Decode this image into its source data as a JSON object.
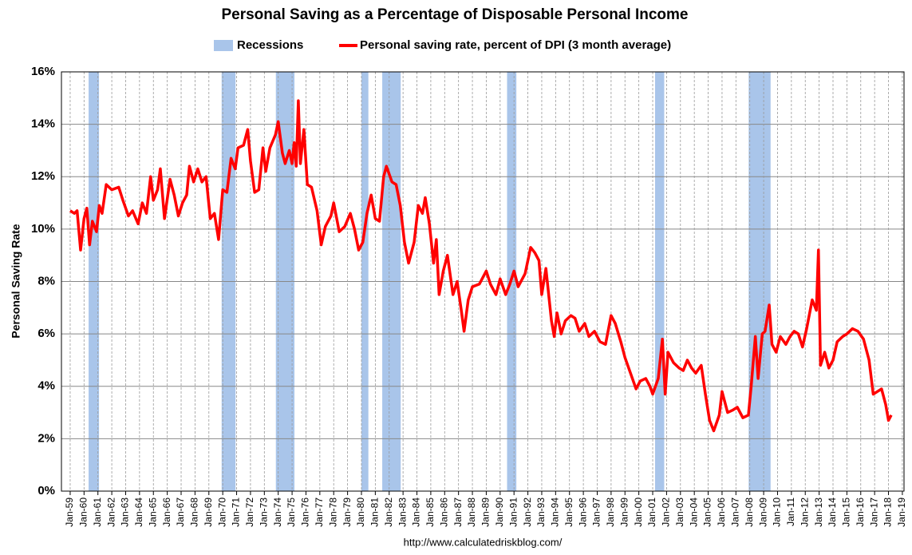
{
  "chart_data": {
    "type": "line",
    "title": "Personal Saving as a Percentage of Disposable Personal Income",
    "ylabel": "Personal Saving Rate",
    "source": "http://www.calculatedriskblog.com/",
    "recession_label": "Recessions",
    "recession_color": "#a9c5ea",
    "recessions": [
      [
        1960.33,
        1961.08
      ],
      [
        1969.92,
        1970.92
      ],
      [
        1973.83,
        1975.17
      ],
      [
        1980.0,
        1980.5
      ],
      [
        1981.5,
        1982.83
      ],
      [
        1990.5,
        1991.17
      ],
      [
        2001.17,
        2001.83
      ],
      [
        2007.92,
        2009.5
      ]
    ],
    "x": [
      1959.0,
      1959.3,
      1959.5,
      1959.75,
      1960.0,
      1960.2,
      1960.4,
      1960.6,
      1960.9,
      1961.1,
      1961.3,
      1961.6,
      1962.0,
      1962.5,
      1962.8,
      1963.2,
      1963.5,
      1963.9,
      1964.2,
      1964.5,
      1964.8,
      1965.0,
      1965.3,
      1965.5,
      1965.8,
      1966.2,
      1966.5,
      1966.8,
      1967.1,
      1967.4,
      1967.6,
      1967.9,
      1968.2,
      1968.5,
      1968.8,
      1969.1,
      1969.4,
      1969.7,
      1970.0,
      1970.3,
      1970.6,
      1970.9,
      1971.1,
      1971.5,
      1971.8,
      1972.0,
      1972.3,
      1972.6,
      1972.9,
      1973.1,
      1973.4,
      1973.8,
      1974.0,
      1974.3,
      1974.5,
      1974.8,
      1975.0,
      1975.15,
      1975.3,
      1975.45,
      1975.6,
      1975.85,
      1976.1,
      1976.4,
      1976.8,
      1977.1,
      1977.4,
      1977.8,
      1978.0,
      1978.4,
      1978.8,
      1979.2,
      1979.5,
      1979.8,
      1980.1,
      1980.4,
      1980.7,
      1981.0,
      1981.3,
      1981.6,
      1981.8,
      1982.2,
      1982.5,
      1982.8,
      1983.1,
      1983.4,
      1983.8,
      1984.1,
      1984.4,
      1984.6,
      1984.9,
      1985.2,
      1985.4,
      1985.6,
      1985.9,
      1986.2,
      1986.6,
      1986.9,
      1987.2,
      1987.4,
      1987.7,
      1988.0,
      1988.5,
      1989.0,
      1989.3,
      1989.7,
      1990.0,
      1990.4,
      1990.7,
      1991.0,
      1991.3,
      1991.8,
      1992.2,
      1992.5,
      1992.8,
      1993.0,
      1993.3,
      1993.7,
      1993.9,
      1994.1,
      1994.4,
      1994.7,
      1995.1,
      1995.4,
      1995.7,
      1996.1,
      1996.4,
      1996.8,
      1997.2,
      1997.6,
      1998.0,
      1998.3,
      1998.7,
      1999.0,
      1999.4,
      1999.8,
      2000.1,
      2000.5,
      2000.8,
      2001.0,
      2001.4,
      2001.7,
      2001.9,
      2002.1,
      2002.5,
      2002.9,
      2003.2,
      2003.5,
      2003.8,
      2004.1,
      2004.5,
      2004.8,
      2005.1,
      2005.4,
      2005.8,
      2006.0,
      2006.4,
      2006.8,
      2007.1,
      2007.5,
      2007.9,
      2008.1,
      2008.4,
      2008.6,
      2008.9,
      2009.1,
      2009.4,
      2009.6,
      2009.9,
      2010.2,
      2010.6,
      2010.9,
      2011.2,
      2011.5,
      2011.8,
      2012.1,
      2012.5,
      2012.8,
      2012.95,
      2013.1,
      2013.4,
      2013.7,
      2014.0,
      2014.3,
      2014.7,
      2015.0,
      2015.4,
      2015.8,
      2016.2,
      2016.6,
      2016.9,
      2017.2,
      2017.5,
      2017.8,
      2018.0,
      2018.2
    ],
    "series": [
      {
        "name": "Personal saving rate, percent of DPI (3 month average)",
        "color": "#ff0000",
        "values": [
          10.7,
          10.6,
          10.7,
          9.2,
          10.4,
          10.8,
          9.4,
          10.3,
          9.9,
          10.9,
          10.6,
          11.7,
          11.5,
          11.6,
          11.1,
          10.5,
          10.7,
          10.2,
          11.0,
          10.6,
          12.0,
          11.1,
          11.5,
          12.3,
          10.4,
          11.9,
          11.3,
          10.5,
          11.0,
          11.3,
          12.4,
          11.8,
          12.3,
          11.8,
          12.0,
          10.4,
          10.6,
          9.6,
          11.5,
          11.4,
          12.7,
          12.3,
          13.1,
          13.2,
          13.8,
          12.6,
          11.4,
          11.5,
          13.1,
          12.2,
          13.1,
          13.6,
          14.1,
          12.9,
          12.5,
          13.0,
          12.5,
          13.3,
          12.4,
          14.9,
          12.5,
          13.8,
          11.7,
          11.6,
          10.7,
          9.4,
          10.1,
          10.5,
          11.0,
          9.9,
          10.1,
          10.6,
          10.0,
          9.2,
          9.5,
          10.6,
          11.3,
          10.4,
          10.3,
          12.0,
          12.4,
          11.8,
          11.7,
          10.9,
          9.5,
          8.7,
          9.5,
          10.9,
          10.6,
          11.2,
          10.2,
          8.7,
          9.6,
          7.5,
          8.4,
          9.0,
          7.5,
          8.0,
          6.9,
          6.1,
          7.3,
          7.8,
          7.9,
          8.4,
          7.9,
          7.5,
          8.1,
          7.5,
          7.9,
          8.4,
          7.8,
          8.3,
          9.3,
          9.1,
          8.8,
          7.5,
          8.5,
          6.5,
          5.9,
          6.8,
          6.0,
          6.5,
          6.7,
          6.6,
          6.1,
          6.4,
          5.9,
          6.1,
          5.7,
          5.6,
          6.7,
          6.4,
          5.7,
          5.1,
          4.5,
          3.9,
          4.2,
          4.3,
          4.0,
          3.7,
          4.3,
          5.8,
          3.7,
          5.3,
          4.9,
          4.7,
          4.6,
          5.0,
          4.7,
          4.5,
          4.8,
          3.7,
          2.7,
          2.3,
          2.9,
          3.8,
          3.0,
          3.1,
          3.2,
          2.8,
          2.9,
          4.0,
          5.9,
          4.3,
          6.0,
          6.1,
          7.1,
          5.6,
          5.3,
          5.9,
          5.6,
          5.9,
          6.1,
          6.0,
          5.5,
          6.2,
          7.3,
          6.9,
          9.2,
          4.8,
          5.3,
          4.7,
          5.0,
          5.7,
          5.9,
          6.0,
          6.2,
          6.1,
          5.8,
          5.0,
          3.7,
          3.8,
          3.9,
          3.3,
          2.7,
          2.9
        ]
      }
    ],
    "xlim": [
      1958.37,
      2019.12
    ],
    "xticks": [
      {
        "value": 1959,
        "label": "Jan-59"
      },
      {
        "value": 1960,
        "label": "Jan-60"
      },
      {
        "value": 1961,
        "label": "Jan-61"
      },
      {
        "value": 1962,
        "label": "Jan-62"
      },
      {
        "value": 1963,
        "label": "Jan-63"
      },
      {
        "value": 1964,
        "label": "Jan-64"
      },
      {
        "value": 1965,
        "label": "Jan-65"
      },
      {
        "value": 1966,
        "label": "Jan-66"
      },
      {
        "value": 1967,
        "label": "Jan-67"
      },
      {
        "value": 1968,
        "label": "Jan-68"
      },
      {
        "value": 1969,
        "label": "Jan-69"
      },
      {
        "value": 1970,
        "label": "Jan-70"
      },
      {
        "value": 1971,
        "label": "Jan-71"
      },
      {
        "value": 1972,
        "label": "Jan-72"
      },
      {
        "value": 1973,
        "label": "Jan-73"
      },
      {
        "value": 1974,
        "label": "Jan-74"
      },
      {
        "value": 1975,
        "label": "Jan-75"
      },
      {
        "value": 1976,
        "label": "Jan-76"
      },
      {
        "value": 1977,
        "label": "Jan-77"
      },
      {
        "value": 1978,
        "label": "Jan-78"
      },
      {
        "value": 1979,
        "label": "Jan-79"
      },
      {
        "value": 1980,
        "label": "Jan-80"
      },
      {
        "value": 1981,
        "label": "Jan-81"
      },
      {
        "value": 1982,
        "label": "Jan-82"
      },
      {
        "value": 1983,
        "label": "Jan-83"
      },
      {
        "value": 1984,
        "label": "Jan-84"
      },
      {
        "value": 1985,
        "label": "Jan-85"
      },
      {
        "value": 1986,
        "label": "Jan-86"
      },
      {
        "value": 1987,
        "label": "Jan-87"
      },
      {
        "value": 1988,
        "label": "Jan-88"
      },
      {
        "value": 1989,
        "label": "Jan-89"
      },
      {
        "value": 1990,
        "label": "Jan-90"
      },
      {
        "value": 1991,
        "label": "Jan-91"
      },
      {
        "value": 1992,
        "label": "Jan-92"
      },
      {
        "value": 1993,
        "label": "Jan-93"
      },
      {
        "value": 1994,
        "label": "Jan-94"
      },
      {
        "value": 1995,
        "label": "Jan-95"
      },
      {
        "value": 1996,
        "label": "Jan-96"
      },
      {
        "value": 1997,
        "label": "Jan-97"
      },
      {
        "value": 1998,
        "label": "Jan-98"
      },
      {
        "value": 1999,
        "label": "Jan-99"
      },
      {
        "value": 2000,
        "label": "Jan-00"
      },
      {
        "value": 2001,
        "label": "Jan-01"
      },
      {
        "value": 2002,
        "label": "Jan-02"
      },
      {
        "value": 2003,
        "label": "Jan-03"
      },
      {
        "value": 2004,
        "label": "Jan-04"
      },
      {
        "value": 2005,
        "label": "Jan-05"
      },
      {
        "value": 2006,
        "label": "Jan-06"
      },
      {
        "value": 2007,
        "label": "Jan-07"
      },
      {
        "value": 2008,
        "label": "Jan-08"
      },
      {
        "value": 2009,
        "label": "Jan-09"
      },
      {
        "value": 2010,
        "label": "Jan-10"
      },
      {
        "value": 2011,
        "label": "Jan-11"
      },
      {
        "value": 2012,
        "label": "Jan-12"
      },
      {
        "value": 2013,
        "label": "Jan-13"
      },
      {
        "value": 2014,
        "label": "Jan-14"
      },
      {
        "value": 2015,
        "label": "Jan-15"
      },
      {
        "value": 2016,
        "label": "Jan-16"
      },
      {
        "value": 2017,
        "label": "Jan-17"
      },
      {
        "value": 2018,
        "label": "Jan-18"
      },
      {
        "value": 2019,
        "label": "Jan-19"
      }
    ],
    "ylim": [
      0,
      16
    ],
    "yticks": [
      {
        "value": 0,
        "label": "0%"
      },
      {
        "value": 2,
        "label": "2%"
      },
      {
        "value": 4,
        "label": "4%"
      },
      {
        "value": 6,
        "label": "6%"
      },
      {
        "value": 8,
        "label": "8%"
      },
      {
        "value": 10,
        "label": "10%"
      },
      {
        "value": 12,
        "label": "12%"
      },
      {
        "value": 14,
        "label": "14%"
      },
      {
        "value": 16,
        "label": "16%"
      }
    ],
    "grid": true
  }
}
